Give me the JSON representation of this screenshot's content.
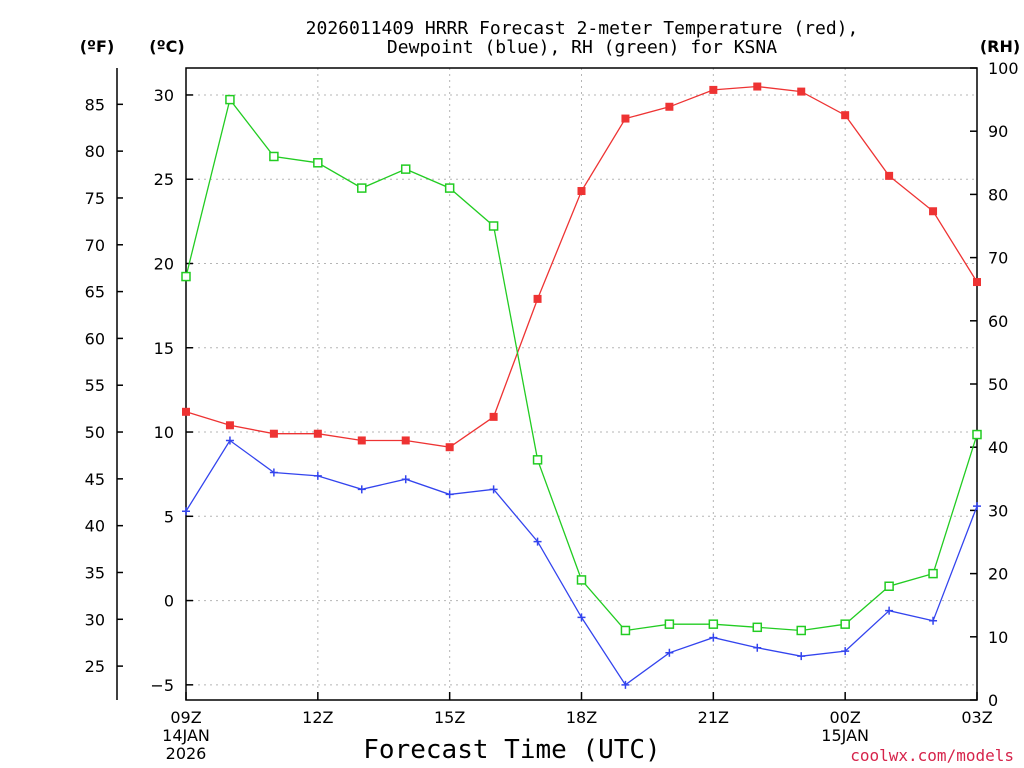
{
  "chart_data": {
    "type": "line",
    "title_line1": "2026011409 HRRR Forecast 2-meter Temperature (red),",
    "title_line2": "Dewpoint (blue), RH (green) for KSNA",
    "xlabel": "Forecast Time (UTC)",
    "credit": "coolwx.com/models",
    "units": {
      "fahrenheit": "(ºF)",
      "celsius": "(ºC)",
      "rh": "(RH)"
    },
    "hours": [
      9,
      10,
      11,
      12,
      13,
      14,
      15,
      16,
      17,
      18,
      19,
      20,
      21,
      22,
      23,
      24,
      25,
      26,
      27
    ],
    "x_ticks": [
      {
        "hour": 9,
        "label": "09Z",
        "sub1": "14JAN",
        "sub2": "2026"
      },
      {
        "hour": 12,
        "label": "12Z"
      },
      {
        "hour": 15,
        "label": "15Z"
      },
      {
        "hour": 18,
        "label": "18Z"
      },
      {
        "hour": 21,
        "label": "21Z"
      },
      {
        "hour": 24,
        "label": "00Z",
        "sub1": "15JAN"
      },
      {
        "hour": 27,
        "label": "03Z"
      }
    ],
    "celsius_axis": {
      "ylim": [
        -5.9,
        31.6
      ],
      "ticks": [
        -5,
        0,
        5,
        10,
        15,
        20,
        25,
        30
      ]
    },
    "fahrenheit_axis": {
      "ticks": [
        25,
        30,
        35,
        40,
        45,
        50,
        55,
        60,
        65,
        70,
        75,
        80,
        85
      ]
    },
    "rh_axis": {
      "ylim": [
        0,
        100
      ],
      "ticks": [
        0,
        10,
        20,
        30,
        40,
        50,
        60,
        70,
        80,
        90,
        100
      ]
    },
    "series": [
      {
        "name": "Temperature",
        "units": "C",
        "axis": "celsius",
        "color": "#ee3333",
        "marker": "filled-square",
        "values": [
          11.2,
          10.4,
          9.9,
          9.9,
          9.5,
          9.5,
          9.1,
          10.9,
          17.9,
          24.3,
          28.6,
          29.3,
          30.3,
          30.5,
          30.2,
          28.8,
          25.2,
          23.1,
          18.9
        ]
      },
      {
        "name": "Dewpoint",
        "units": "C",
        "axis": "celsius",
        "color": "#3344ee",
        "marker": "plus",
        "values": [
          5.3,
          9.5,
          7.6,
          7.4,
          6.6,
          7.2,
          6.3,
          6.6,
          3.5,
          -1.0,
          -5.0,
          -3.1,
          -2.2,
          -2.8,
          -3.3,
          -3.0,
          -0.6,
          -1.2,
          5.6
        ]
      },
      {
        "name": "RH",
        "units": "%",
        "axis": "rh",
        "color": "#22cc22",
        "marker": "open-square",
        "values": [
          67,
          95,
          86,
          85,
          81,
          84,
          81,
          75,
          38,
          19,
          11,
          12,
          12,
          11.5,
          11,
          12,
          18,
          20,
          42
        ]
      }
    ]
  }
}
